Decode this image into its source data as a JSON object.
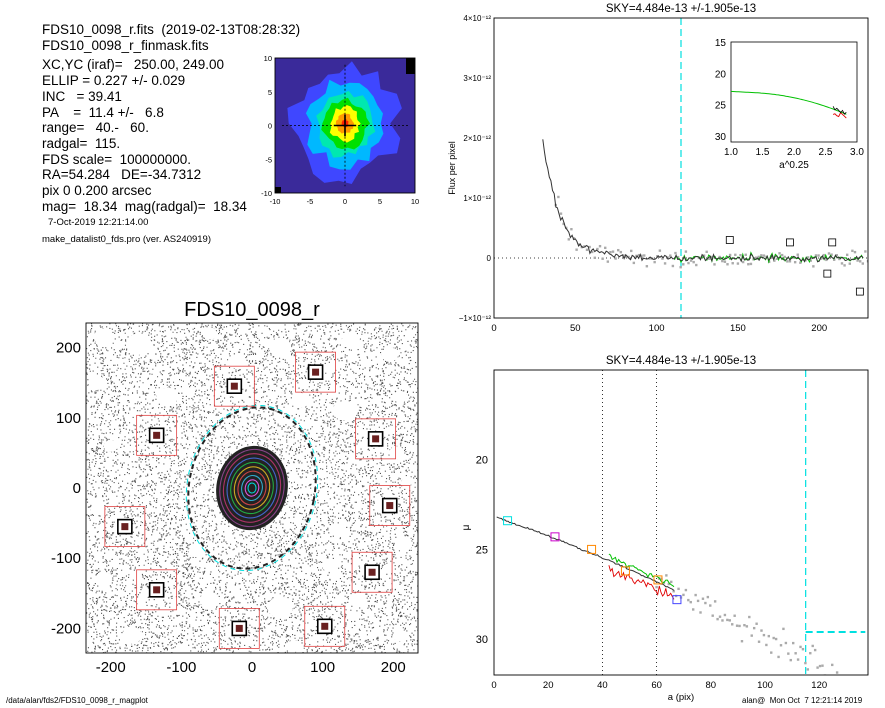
{
  "info": {
    "lines": [
      "FDS10_0098_r.fits  (2019-02-13T08:28:32)",
      "FDS10_0098_r_finmask.fits",
      "XC,YC (iraf)=   250.00, 249.00",
      "ELLIP = 0.227 +/- 0.029",
      "INC   = 39.41",
      "PA    =  11.4 +/-   6.8",
      "range=   40.-   60.",
      "radgal=  115.",
      "FDS scale=  100000000.",
      "RA=54.284   DE=-34.7312",
      "pix 0 0.200 arcsec",
      "mag=  18.34  mag(radgal)=  18.34"
    ],
    "date_line": "7-Oct-2019 12:21:14.00",
    "program_line": "make_datalist0_fds.pro (ver. AS240919)"
  },
  "footer": {
    "path": "/data/alan/fds2/FDS10_0098_r_magplot",
    "user": "alan@  Mon Oct  7 12:21:14 2019"
  },
  "colors": {
    "sky_line": "#00e0e0",
    "data_points": "#aaaaaa",
    "profile_line": "#333333",
    "green": "#00c000",
    "red": "#e00000",
    "magenta": "#cc00cc",
    "orange": "#ff8800",
    "blue": "#4444ff",
    "mask_box": "#e04040"
  },
  "chart_data": [
    {
      "id": "thumbnail",
      "type": "heatmap",
      "xlim": [
        -10,
        10
      ],
      "ylim": [
        -10,
        10
      ],
      "xticks": [
        "-10",
        "-5",
        "0",
        "5",
        "10"
      ],
      "yticks": [
        "10",
        "5",
        "0",
        "-5",
        "-10"
      ],
      "palette": [
        "#000000",
        "#3a2a9a",
        "#3f47ff",
        "#00b8ff",
        "#00e8b0",
        "#00e000",
        "#ffff00",
        "#ff9a00",
        "#ff2000"
      ],
      "levels": [
        {
          "rx": 10.0,
          "ry": 10.0,
          "c": 1
        },
        {
          "rx": 7.6,
          "ry": 8.6,
          "c": 2
        },
        {
          "rx": 5.6,
          "ry": 6.2,
          "c": 3
        },
        {
          "rx": 4.3,
          "ry": 4.9,
          "c": 4
        },
        {
          "rx": 3.3,
          "ry": 3.7,
          "c": 5
        },
        {
          "rx": 2.2,
          "ry": 2.6,
          "c": 6
        },
        {
          "rx": 1.2,
          "ry": 1.5,
          "c": 7
        },
        {
          "rx": 0.5,
          "ry": 0.6,
          "c": 8
        }
      ]
    },
    {
      "id": "image",
      "type": "scatter",
      "title": "FDS10_0098_r",
      "xlim": [
        -235,
        235
      ],
      "ylim": [
        -235,
        235
      ],
      "xticks": [
        "-200",
        "-100",
        "0",
        "100",
        "200"
      ],
      "yticks": [
        "200",
        "100",
        "0",
        "-100",
        "-200"
      ],
      "ellipses": [
        {
          "a": 115,
          "b": 89,
          "pa": 11.4,
          "style": "dashed"
        },
        {
          "a": 60,
          "b": 46,
          "pa": 11.4,
          "style": "ring"
        },
        {
          "a": 40,
          "b": 31,
          "pa": 11.4,
          "style": "ring"
        }
      ],
      "stars": [
        {
          "x": -135,
          "y": 75
        },
        {
          "x": -25,
          "y": 145
        },
        {
          "x": 90,
          "y": 165
        },
        {
          "x": 175,
          "y": 70
        },
        {
          "x": 195,
          "y": -25
        },
        {
          "x": -180,
          "y": -55
        },
        {
          "x": 170,
          "y": -120
        },
        {
          "x": -135,
          "y": -145
        },
        {
          "x": -18,
          "y": -200
        },
        {
          "x": 103,
          "y": -197
        }
      ]
    },
    {
      "id": "flux",
      "type": "scatter",
      "title": "SKY=4.484e-13 +/-1.905e-13",
      "ylabel": "Flux per pixel",
      "xlim": [
        0,
        230
      ],
      "ylim": [
        -1e-12,
        4e-12
      ],
      "xticks": [
        "0",
        "50",
        "100",
        "150",
        "200"
      ],
      "yticks": [
        {
          "v": 4e-12,
          "label": "4×10⁻¹²"
        },
        {
          "v": 3e-12,
          "label": "3×10⁻¹²"
        },
        {
          "v": 2e-12,
          "label": "2×10⁻¹²"
        },
        {
          "v": 1e-12,
          "label": "1×10⁻¹²"
        },
        {
          "v": 0,
          "label": "0"
        },
        {
          "v": -1e-12,
          "label": "−1×10⁻¹²"
        }
      ],
      "vline": 115,
      "squares": [
        [
          145,
          3e-13
        ],
        [
          182,
          2.6e-13
        ],
        [
          208,
          2.6e-13
        ],
        [
          205,
          -2.6e-13
        ],
        [
          225,
          -5.6e-13
        ]
      ],
      "inset": {
        "xlabel": "a^0.25",
        "xlim": [
          1.0,
          3.0
        ],
        "ylim": [
          15,
          31
        ],
        "xticks": [
          "1.0",
          "1.5",
          "2.0",
          "2.5",
          "3.0"
        ],
        "yticks": [
          "15",
          "20",
          "25",
          "30"
        ]
      }
    },
    {
      "id": "mu",
      "type": "scatter",
      "title": "SKY=4.484e-13 +/-1.905e-13",
      "xlabel": "a (pix)",
      "ylabel": "μ",
      "xlim": [
        0,
        138
      ],
      "ylim": [
        32,
        15
      ],
      "xticks": [
        "0",
        "20",
        "40",
        "60",
        "80",
        "100",
        "120"
      ],
      "yticks": [
        "20",
        "25",
        "30"
      ],
      "vlines_dotted": [
        40,
        60
      ],
      "vline": 115,
      "sky_level": 29.6,
      "boxes": [
        {
          "x": 5,
          "y": 23.4,
          "c": "sky_line"
        },
        {
          "x": 22.5,
          "y": 24.3,
          "c": "magenta"
        },
        {
          "x": 36,
          "y": 25.0,
          "c": "orange"
        },
        {
          "x": 48.5,
          "y": 26.2,
          "c": "orange"
        },
        {
          "x": 60.5,
          "y": 26.7,
          "c": "orange"
        },
        {
          "x": 67.5,
          "y": 27.8,
          "c": "blue"
        }
      ]
    }
  ]
}
